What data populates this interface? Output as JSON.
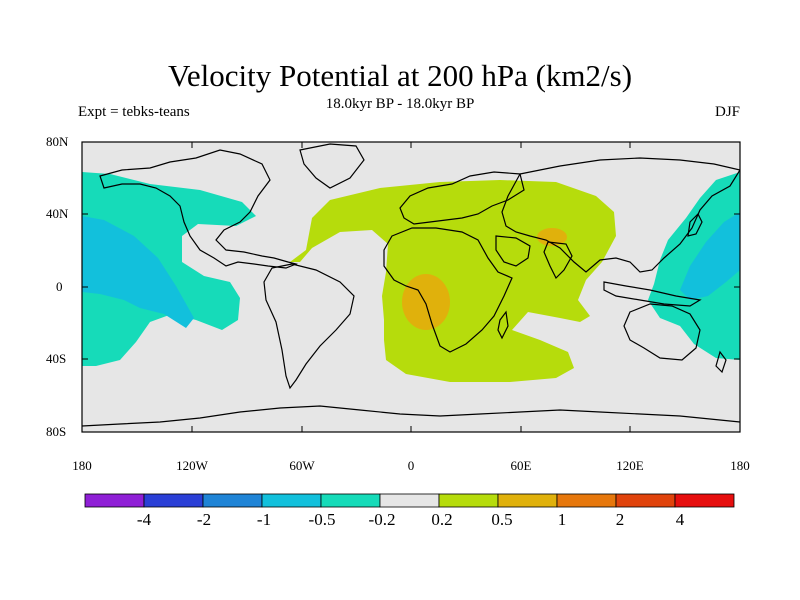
{
  "title": "Velocity Potential at 200 hPa (km2/s)",
  "subtitle": "18.0kyr BP - 18.0kyr BP",
  "experiment_label": "Expt = tebks-teans",
  "season_label": "DJF",
  "lat_ticks": [
    "80N",
    "40N",
    "0",
    "40S",
    "80S"
  ],
  "lon_ticks": [
    "180",
    "120W",
    "60W",
    "0",
    "60E",
    "120E",
    "180"
  ],
  "colorbar": {
    "colors": [
      "#8f1fd6",
      "#2a3fd6",
      "#1f84d6",
      "#12c0dc",
      "#16dbb9",
      "#e6e6e6",
      "#b6dc0c",
      "#e0b10c",
      "#e6770c",
      "#e0430c",
      "#e60f0f"
    ],
    "labels": [
      "-4",
      "-2",
      "-1",
      "-0.5",
      "-0.2",
      "0.2",
      "0.5",
      "1",
      "2",
      "4"
    ]
  },
  "colors": {
    "background_land_ocean": "#e6e6e6",
    "neg_cyan": "#16dbb9",
    "neg_blue": "#12c0dc",
    "pos_green": "#b6dc0c",
    "pos_orange": "#e0b10c"
  }
}
